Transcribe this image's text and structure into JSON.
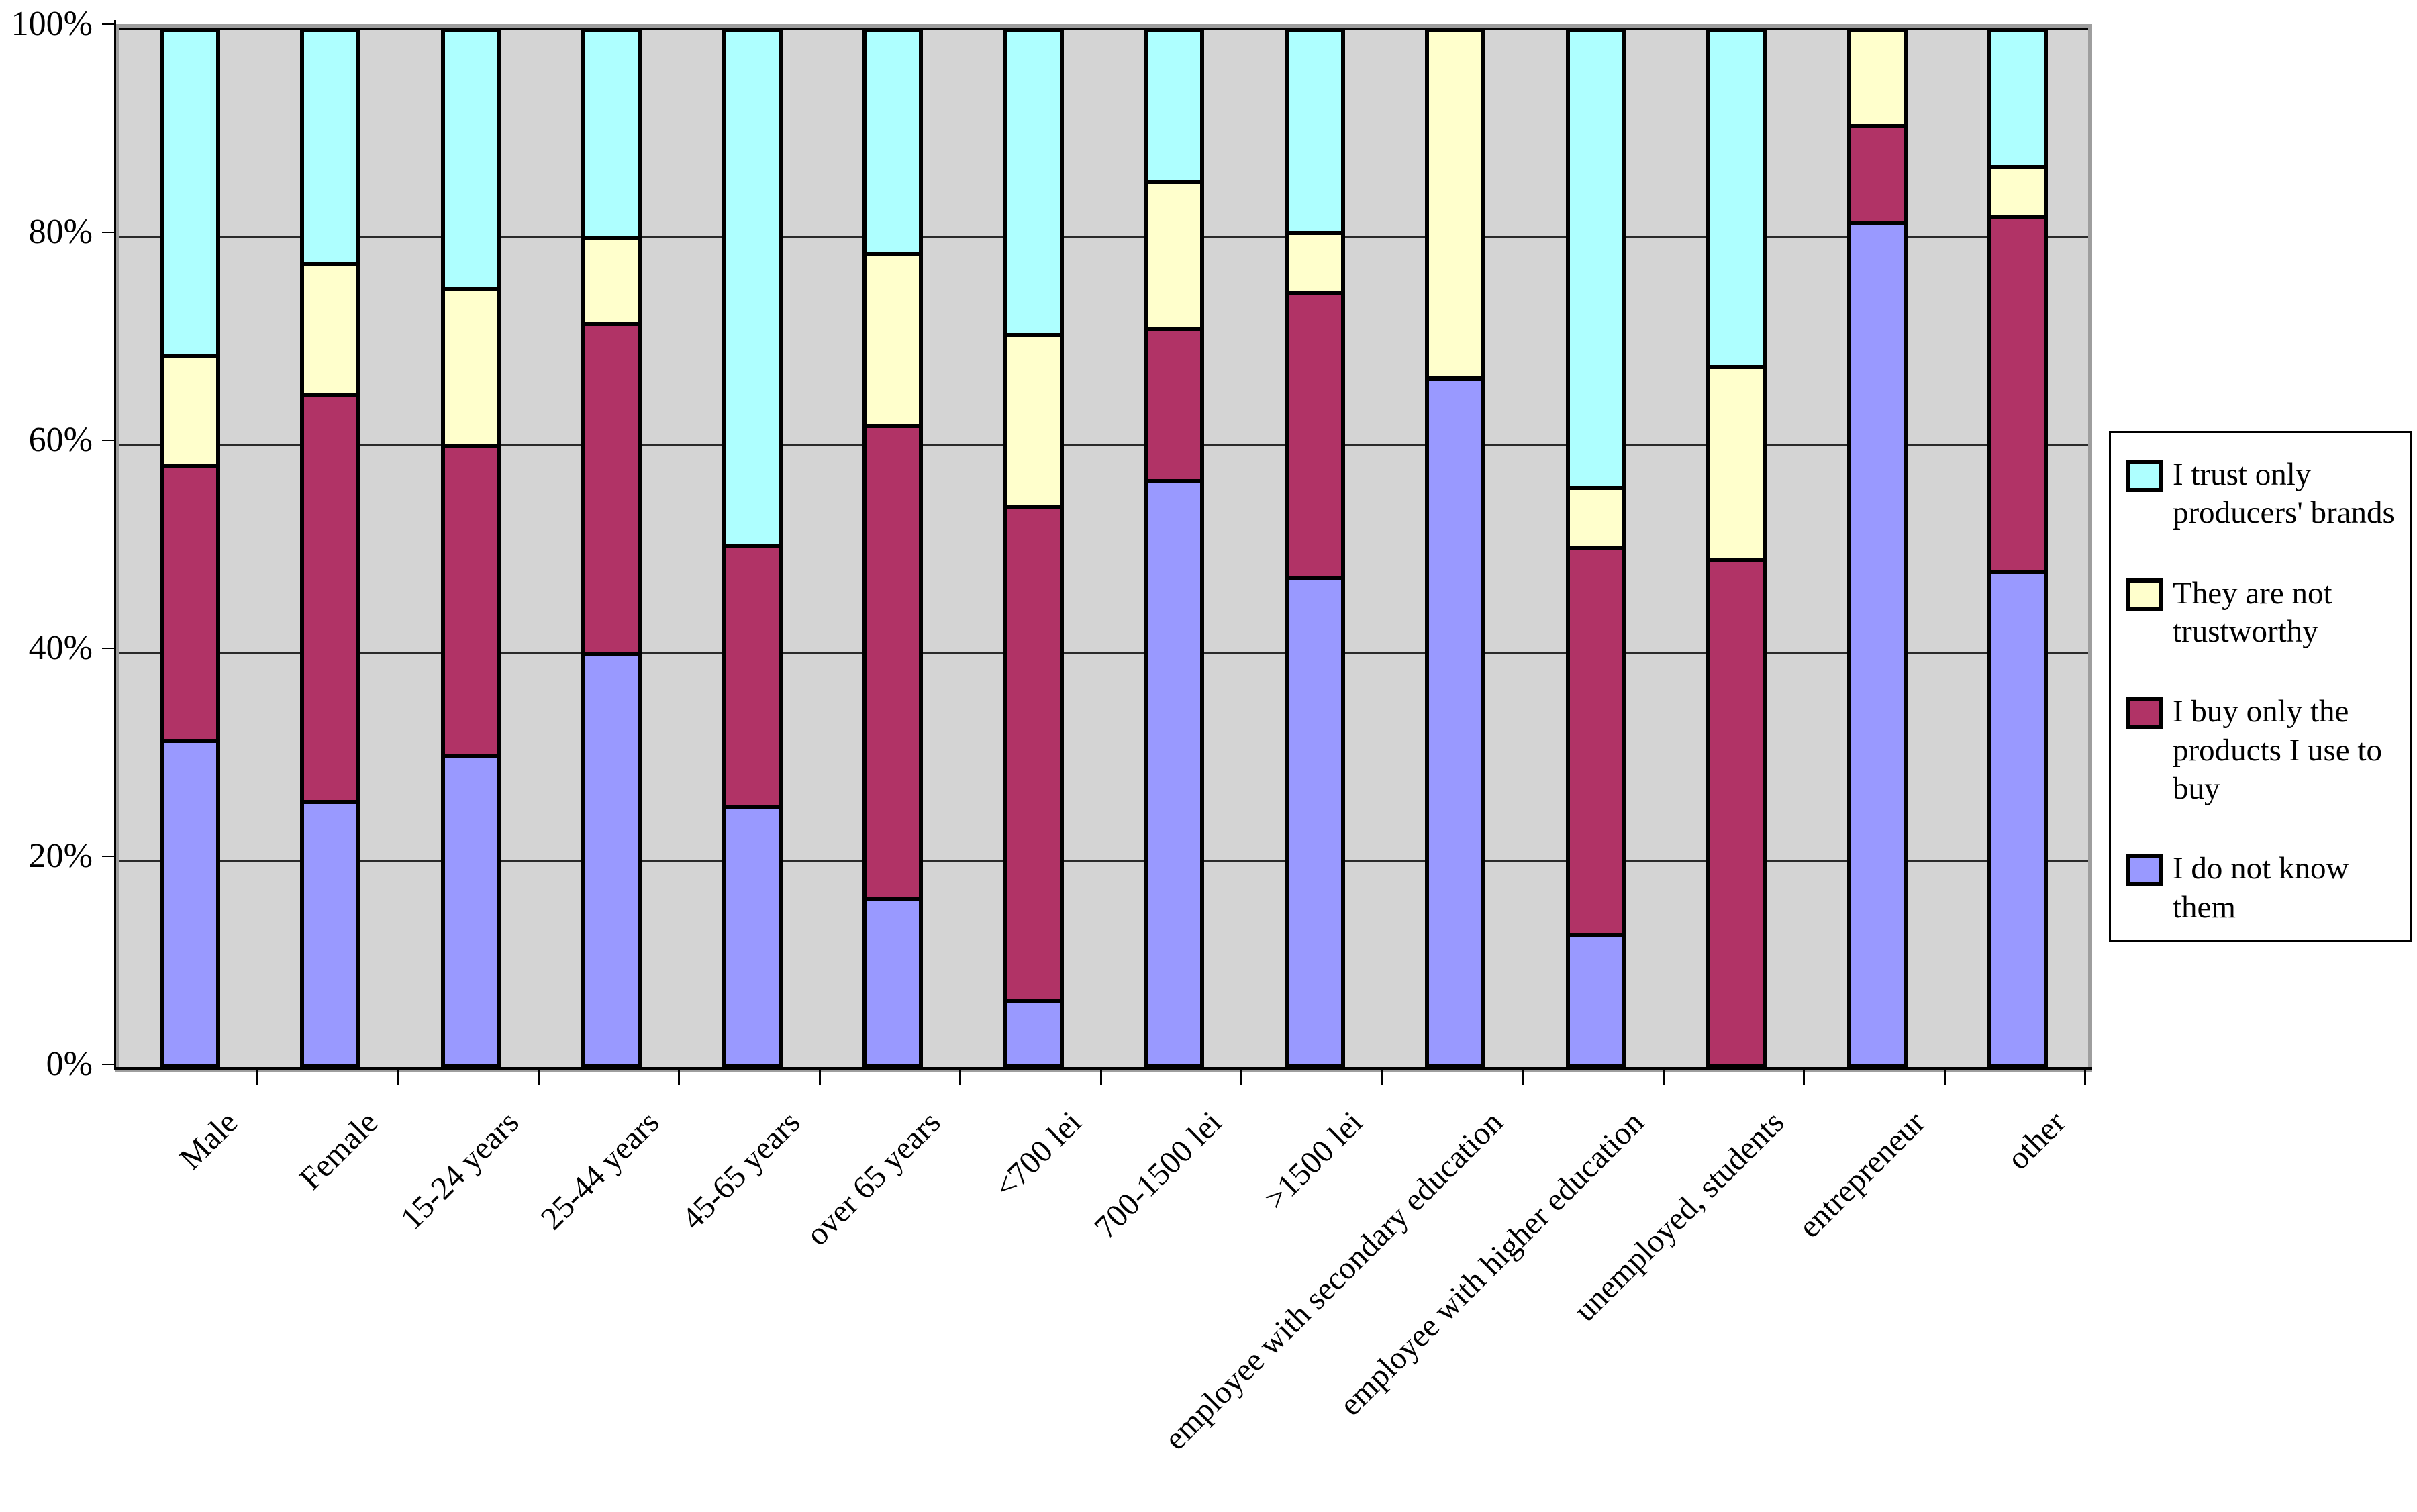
{
  "chart_data": {
    "type": "bar",
    "stacked": true,
    "percent_stacked": true,
    "title": "",
    "xlabel": "",
    "ylabel": "",
    "ylim": [
      0,
      100
    ],
    "grid": true,
    "plot_background": "#d4d4d4",
    "legend_position": "right",
    "y_tick_labels": [
      "100%",
      "80%",
      "60%",
      "40%",
      "20%",
      "0%"
    ],
    "y_tick_values": [
      100,
      80,
      60,
      40,
      20,
      0
    ],
    "categories": [
      "Male",
      "Female",
      "15-24 years",
      "25-44 years",
      "45-65  years",
      "over 65 years",
      "<700 lei",
      "700-1500 lei",
      ">1500 lei",
      "employee with secondary education",
      "employee with higher education",
      "unemployed, students",
      "entrepreneur",
      "other"
    ],
    "series": [
      {
        "name": "I do not know them",
        "color": "#9999ff",
        "values": [
          31.5,
          25.5,
          30,
          40,
          25,
          16,
          6,
          57,
          47.5,
          66.5,
          12.5,
          0,
          82,
          48
        ]
      },
      {
        "name": "I buy only the products I use to buy",
        "color": "#b13366",
        "values": [
          26.5,
          39.5,
          30,
          32,
          25,
          46,
          48,
          14.5,
          27.5,
          0,
          37.5,
          49,
          9,
          34.5
        ]
      },
      {
        "name": "They are not trustworthy",
        "color": "#ffffcc",
        "values": [
          10.5,
          12.5,
          15,
          8,
          0,
          16.5,
          16.5,
          14,
          5.5,
          33.5,
          5.5,
          18.5,
          9,
          4.5
        ]
      },
      {
        "name": "I trust only producers' brands",
        "color": "#aeffff",
        "values": [
          31.5,
          22.5,
          25,
          20,
          50,
          21.5,
          29.5,
          14.5,
          19.5,
          0,
          44.5,
          32.5,
          0,
          13
        ]
      }
    ],
    "legend_entries_top_to_bottom": [
      "I trust only producers' brands",
      "They are not trustworthy",
      "I buy only the products I use to buy",
      "I do not know them"
    ]
  },
  "layout_colors": {
    "gridline": "#2a2a2a",
    "bar_border": "#000000",
    "page_background": "#ffffff"
  }
}
